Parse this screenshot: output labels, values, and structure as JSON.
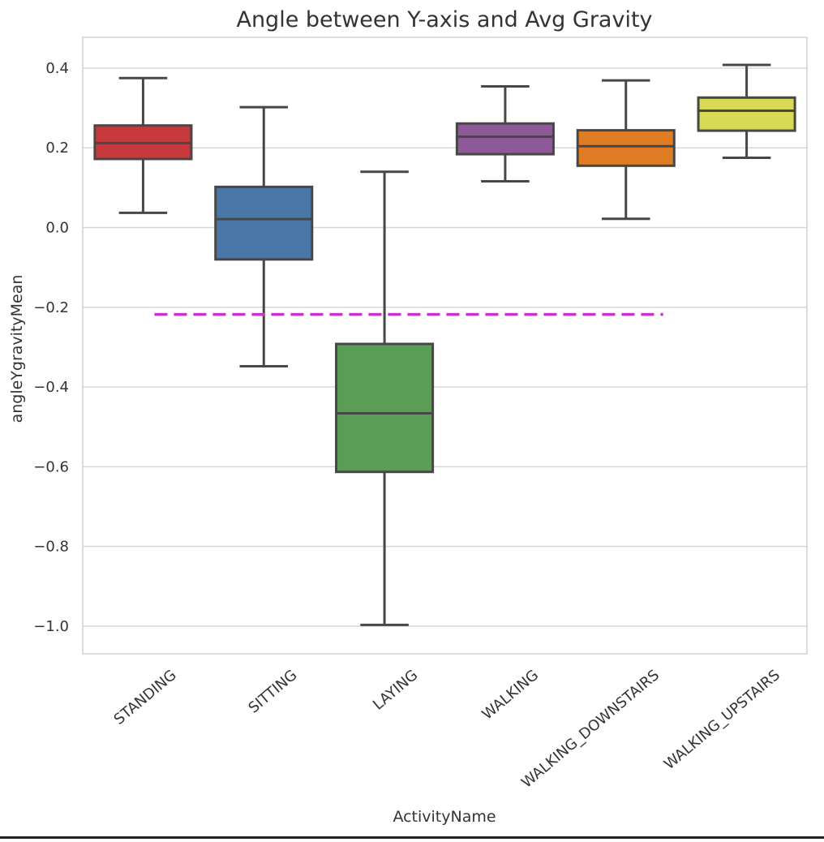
{
  "chart_data": {
    "type": "box",
    "title": "Angle between Y-axis and Avg Gravity",
    "xlabel": "ActivityName",
    "ylabel": "angleYgravityMean",
    "ylim": [
      -1.07,
      0.475
    ],
    "yticks": [
      0.4,
      0.2,
      0.0,
      -0.2,
      -0.4,
      -0.6,
      -0.8,
      -1.0
    ],
    "ytick_labels": [
      "0.4",
      "0.2",
      "0.0",
      "−0.2",
      "−0.4",
      "−0.6",
      "−0.8",
      "−1.0"
    ],
    "grid": true,
    "categories": [
      "STANDING",
      "SITTING",
      "LAYING",
      "WALKING",
      "WALKING_DOWNSTAIRS",
      "WALKING_UPSTAIRS"
    ],
    "boxes": [
      {
        "category": "STANDING",
        "whisker_low": 0.037,
        "q1": 0.172,
        "median": 0.212,
        "q3": 0.256,
        "whisker_high": 0.375,
        "color": "#c8393d"
      },
      {
        "category": "SITTING",
        "whisker_low": -0.348,
        "q1": -0.08,
        "median": 0.021,
        "q3": 0.102,
        "whisker_high": 0.302,
        "color": "#4978a8"
      },
      {
        "category": "LAYING",
        "whisker_low": -0.997,
        "q1": -0.613,
        "median": -0.466,
        "q3": -0.292,
        "whisker_high": 0.14,
        "color": "#5a9e56"
      },
      {
        "category": "WALKING",
        "whisker_low": 0.116,
        "q1": 0.184,
        "median": 0.228,
        "q3": 0.261,
        "whisker_high": 0.354,
        "color": "#8d5996"
      },
      {
        "category": "WALKING_DOWNSTAIRS",
        "whisker_low": 0.022,
        "q1": 0.155,
        "median": 0.204,
        "q3": 0.244,
        "whisker_high": 0.369,
        "color": "#e07c23"
      },
      {
        "category": "WALKING_UPSTAIRS",
        "whisker_low": 0.175,
        "q1": 0.243,
        "median": 0.293,
        "q3": 0.326,
        "whisker_high": 0.408,
        "color": "#d8d955"
      }
    ],
    "reference_line": {
      "y": -0.218,
      "style": "dashed",
      "color": "#cc33cc"
    },
    "colors": {
      "grid": "#d8d8d8",
      "frame": "#d0d0d0",
      "box_edge": "#474747",
      "text": "#333333"
    }
  }
}
